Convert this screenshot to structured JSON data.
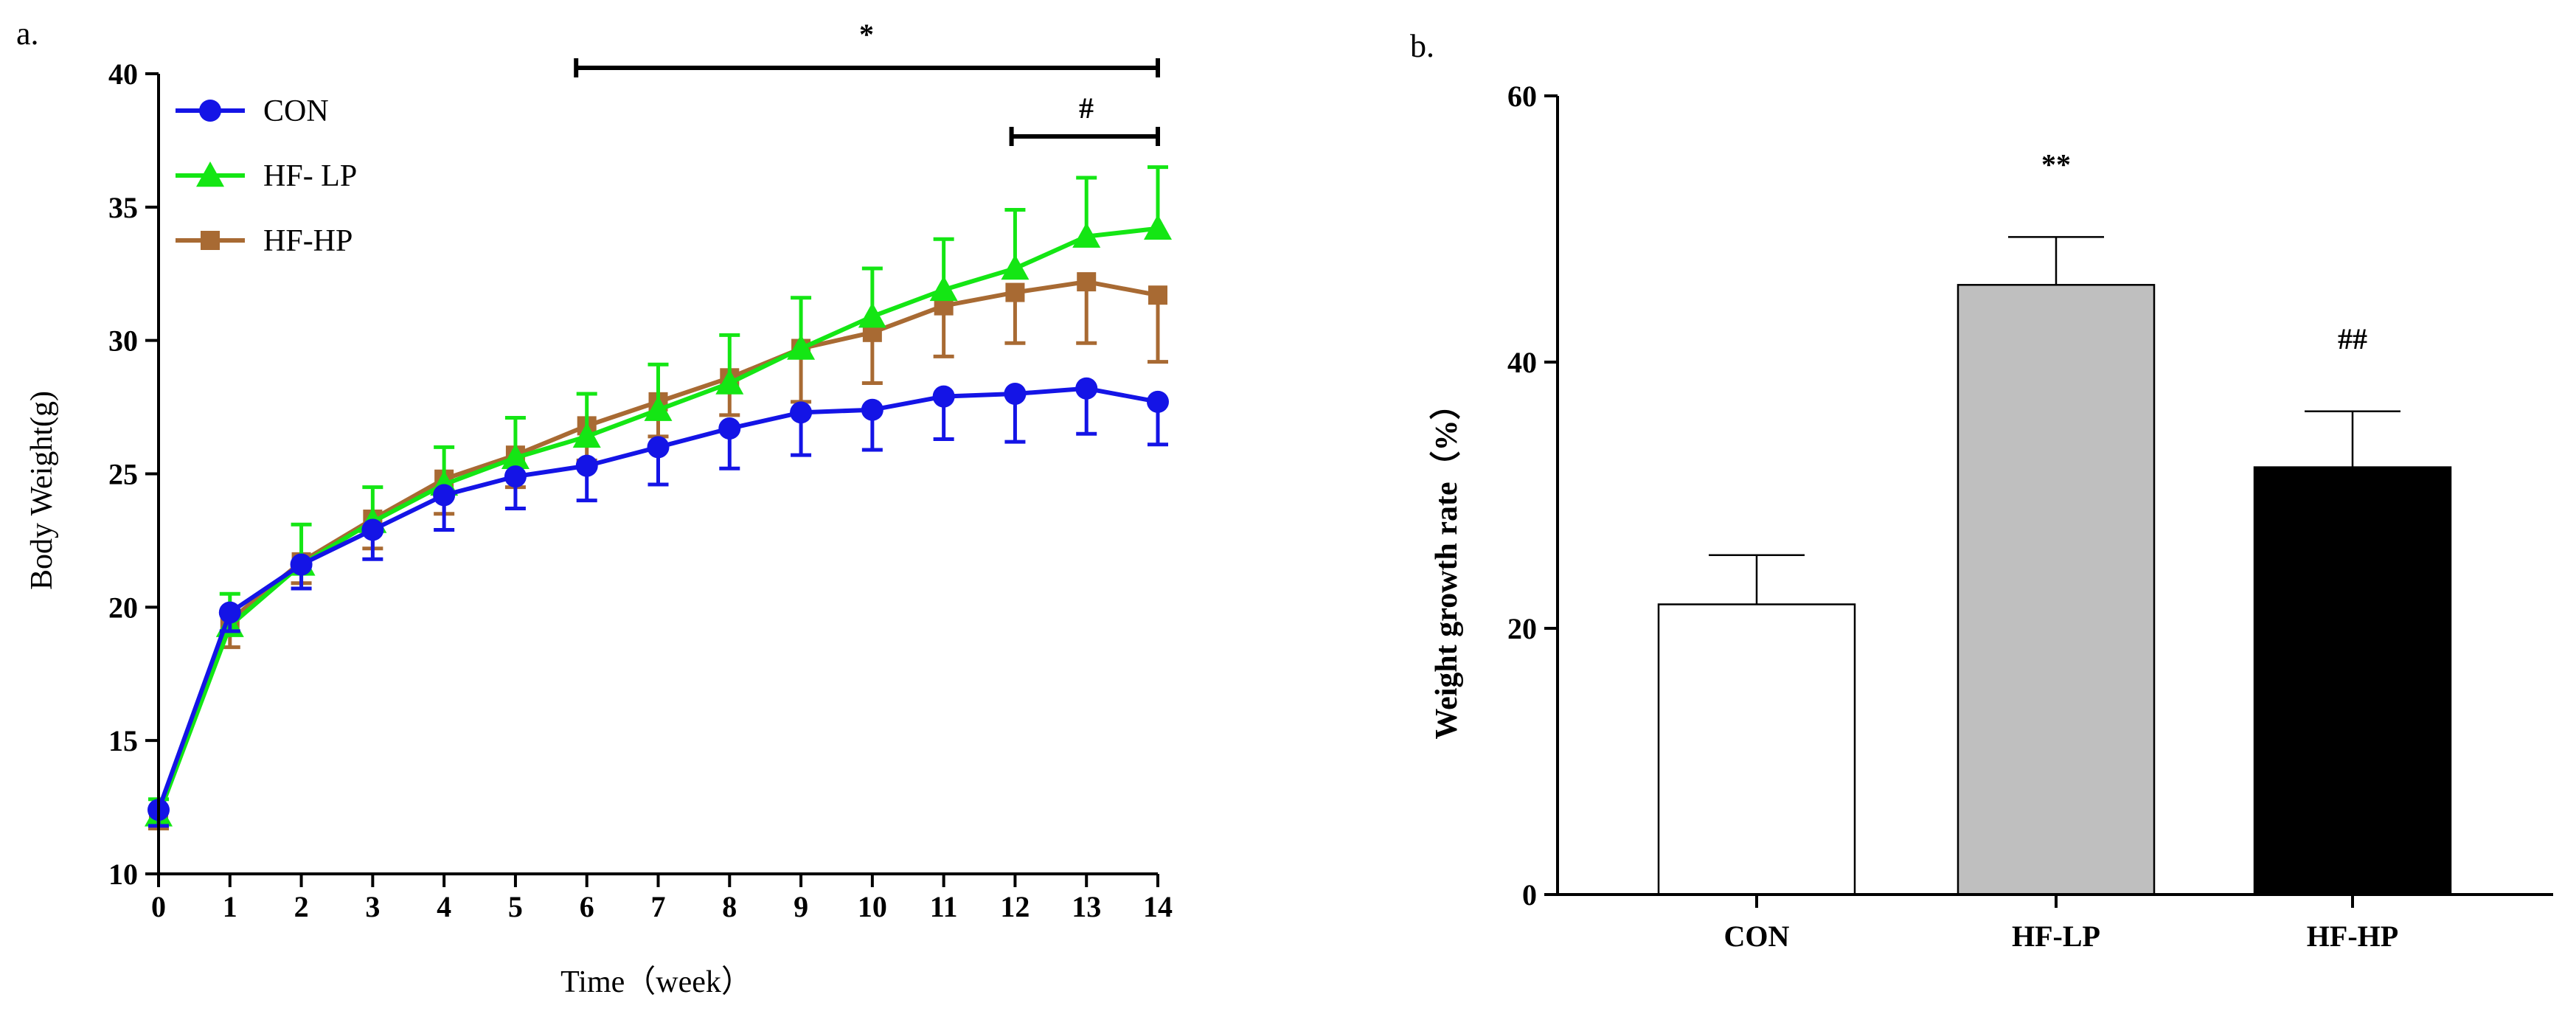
{
  "chart_data": [
    {
      "panel_label": "a.",
      "type": "line",
      "xlabel": "Time（week）",
      "ylabel": "Body Weight(g)",
      "x": [
        0,
        1,
        2,
        3,
        4,
        5,
        6,
        7,
        8,
        9,
        10,
        11,
        12,
        13,
        14
      ],
      "xticks": [
        "0",
        "1",
        "2",
        "3",
        "4",
        "5",
        "6",
        "7",
        "8",
        "9",
        "10",
        "11",
        "12",
        "13",
        "14"
      ],
      "ylim": [
        10,
        40
      ],
      "yticks": [
        "10",
        "15",
        "20",
        "25",
        "30",
        "35",
        "40"
      ],
      "ytick_values": [
        10,
        15,
        20,
        25,
        30,
        35,
        40
      ],
      "legend_position": "top-left",
      "series": [
        {
          "name": "CON",
          "color": "#1414e6",
          "marker": "circle",
          "values": [
            12.4,
            19.8,
            21.6,
            22.9,
            24.2,
            24.9,
            25.3,
            26.0,
            26.7,
            27.3,
            27.4,
            27.9,
            28.0,
            28.2,
            27.7
          ],
          "errors": [
            0.6,
            0.7,
            0.9,
            1.1,
            1.3,
            1.2,
            1.3,
            1.4,
            1.5,
            1.6,
            1.5,
            1.6,
            1.8,
            1.7,
            1.6
          ],
          "error_direction": "down"
        },
        {
          "name": "HF- LP",
          "color": "#14e614",
          "marker": "triangle",
          "values": [
            12.2,
            19.3,
            21.6,
            23.2,
            24.6,
            25.6,
            26.4,
            27.4,
            28.4,
            29.7,
            30.9,
            31.9,
            32.7,
            33.9,
            34.2
          ],
          "errors": [
            0.6,
            1.2,
            1.5,
            1.3,
            1.4,
            1.5,
            1.6,
            1.7,
            1.8,
            1.9,
            1.8,
            1.9,
            2.2,
            2.2,
            2.3
          ],
          "error_direction": "up"
        },
        {
          "name": "HF-HP",
          "color": "#a86a33",
          "marker": "square",
          "values": [
            12.2,
            19.5,
            21.7,
            23.3,
            24.8,
            25.7,
            26.8,
            27.7,
            28.6,
            29.7,
            30.3,
            31.3,
            31.8,
            32.2,
            31.7
          ],
          "errors": [
            0.5,
            1.0,
            0.8,
            1.1,
            1.3,
            1.2,
            1.3,
            1.3,
            1.4,
            2.0,
            1.9,
            1.9,
            1.9,
            2.3,
            2.5
          ],
          "error_direction": "down"
        }
      ],
      "annotations": [
        {
          "text": "*",
          "x_start": 5.85,
          "x_end": 14
        },
        {
          "text": "#",
          "x_start": 11.95,
          "x_end": 14
        }
      ]
    },
    {
      "panel_label": "b.",
      "type": "bar",
      "xlabel": "",
      "ylabel": "Weight growth rate（%）",
      "categories": [
        "CON",
        "HF-LP",
        "HF-HP"
      ],
      "values": [
        21.8,
        45.8,
        32.1
      ],
      "errors": [
        3.7,
        3.6,
        4.2
      ],
      "bar_colors": [
        "#ffffff",
        "#bfbfbf",
        "#000000"
      ],
      "ylim": [
        0,
        60
      ],
      "yticks": [
        "0",
        "20",
        "40",
        "60"
      ],
      "ytick_values": [
        0,
        20,
        40,
        60
      ],
      "significance": [
        "",
        "**",
        "##"
      ]
    }
  ]
}
